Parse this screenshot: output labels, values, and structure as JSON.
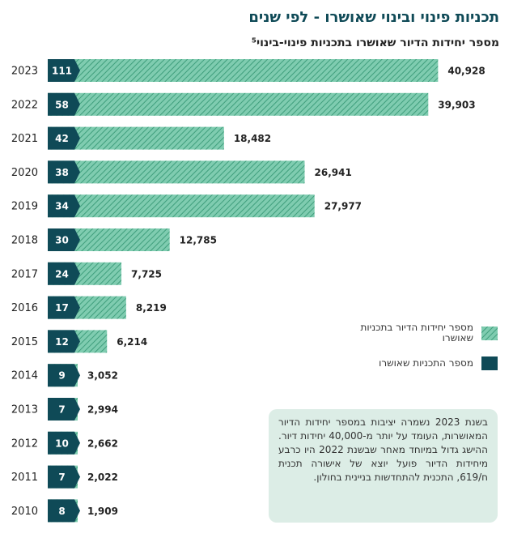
{
  "title": "תכניות פינוי ובינוי שאושרו - לפי שנים",
  "subtitle": "מספר יחידות הדיור שאושרו בתכניות פינוי-בינוי⁵",
  "chart_data": {
    "type": "bar",
    "orientation": "horizontal",
    "categories": [
      "2023",
      "2022",
      "2021",
      "2020",
      "2019",
      "2018",
      "2017",
      "2016",
      "2015",
      "2014",
      "2013",
      "2012",
      "2011",
      "2010"
    ],
    "series": [
      {
        "name": "מספר יחידות הדיור בתכניות שאושרו",
        "values": [
          40928,
          39903,
          18482,
          26941,
          27977,
          12785,
          7725,
          8219,
          6214,
          3052,
          2994,
          2662,
          2022,
          1909
        ],
        "labels": [
          "40,928",
          "39,903",
          "18,482",
          "26,941",
          "27,977",
          "12,785",
          "7,725",
          "8,219",
          "6,214",
          "3,052",
          "2,994",
          "2,662",
          "2,022",
          "1,909"
        ],
        "color": "#7fccb0",
        "pattern": "diagonal-hatch"
      },
      {
        "name": "מספר התכניות שאושרו",
        "values": [
          111,
          58,
          42,
          38,
          34,
          30,
          24,
          17,
          12,
          9,
          7,
          10,
          7,
          8
        ],
        "color": "#0f4a57"
      }
    ],
    "xlim": [
      0,
      42000
    ]
  },
  "legend": {
    "units_label": "מספר יחידות הדיור בתכניות שאושרו",
    "plans_label": "מספר התכניות שאושרו"
  },
  "note": "בשנת 2023 נשמרה יציבות במספר יחידות הדיור המאושרות, העומד על יותר מ-40,000 יחידות דיור. ההישג גדול במיוחד מאחר שבשנת 2022 היו כרבע מיחידות הדיור פועל יוצא של אישורה תכנית ח/619, התכנית להתחדשות בניינית בחולון.",
  "colors": {
    "dark": "#0f4a57",
    "hatch_light": "#7fccb0",
    "hatch_dark": "#3f9e7c",
    "note_bg": "#dcede6"
  }
}
